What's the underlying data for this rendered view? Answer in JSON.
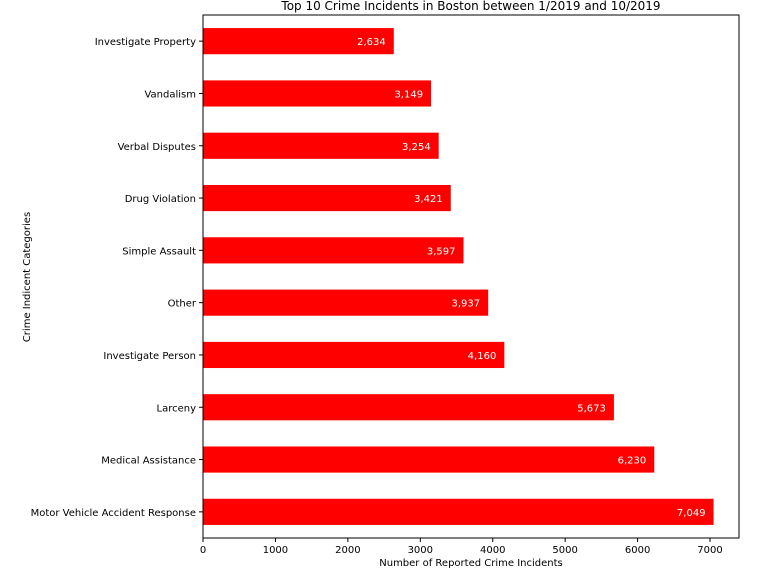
{
  "chart_data": {
    "type": "bar",
    "orientation": "horizontal",
    "title": "Top 10 Crime Incidents in Boston between 1/2019 and 10/2019",
    "xlabel": "Number of Reported Crime Incidents",
    "ylabel": "Crime Indicent Categories",
    "categories": [
      "Investigate Property",
      "Vandalism",
      "Verbal Disputes",
      "Drug Violation",
      "Simple Assault",
      "Other",
      "Investigate Person",
      "Larceny",
      "Medical Assistance",
      "Motor Vehicle Accident Response"
    ],
    "values": [
      2634,
      3149,
      3254,
      3421,
      3597,
      3937,
      4160,
      5673,
      6230,
      7049
    ],
    "value_labels": [
      "2,634",
      "3,149",
      "3,254",
      "3,421",
      "3,597",
      "3,937",
      "4,160",
      "5,673",
      "6,230",
      "7,049"
    ],
    "xlim": [
      0,
      7400
    ],
    "xticks": [
      0,
      1000,
      2000,
      3000,
      4000,
      5000,
      6000,
      7000
    ],
    "xtick_labels": [
      "0",
      "1000",
      "2000",
      "3000",
      "4000",
      "5000",
      "6000",
      "7000"
    ],
    "bar_color": "#ff0000",
    "grid": false,
    "legend": "none"
  }
}
